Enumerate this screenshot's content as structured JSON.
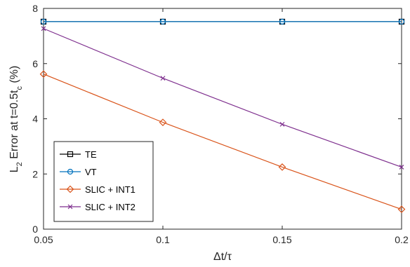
{
  "chart_data": {
    "type": "line",
    "xlabel": "Δt/τ",
    "ylabel": "L2 Error at t=0.5tc (%)",
    "xlim": [
      0.05,
      0.2
    ],
    "ylim": [
      0,
      8
    ],
    "xticks": [
      0.05,
      0.1,
      0.15,
      0.2
    ],
    "xtick_labels": [
      "0.05",
      "0.1",
      "0.15",
      "0.2"
    ],
    "yticks": [
      0,
      2,
      4,
      6,
      8
    ],
    "ytick_labels": [
      "0",
      "2",
      "4",
      "6",
      "8"
    ],
    "grid": false,
    "legend_position": "bottom-left",
    "x": [
      0.05,
      0.1,
      0.15,
      0.2
    ],
    "series": [
      {
        "name": "TE",
        "color": "#000000",
        "marker": "square",
        "values": [
          7.52,
          7.52,
          7.52,
          7.52
        ]
      },
      {
        "name": "VT",
        "color": "#0072BD",
        "marker": "circle",
        "values": [
          7.52,
          7.52,
          7.52,
          7.52
        ]
      },
      {
        "name": "SLIC + INT1",
        "color": "#D95319",
        "marker": "diamond",
        "values": [
          5.62,
          3.87,
          2.25,
          0.72
        ]
      },
      {
        "name": "SLIC + INT2",
        "color": "#7E2F8E",
        "marker": "x",
        "values": [
          7.27,
          5.47,
          3.8,
          2.25
        ]
      }
    ]
  }
}
